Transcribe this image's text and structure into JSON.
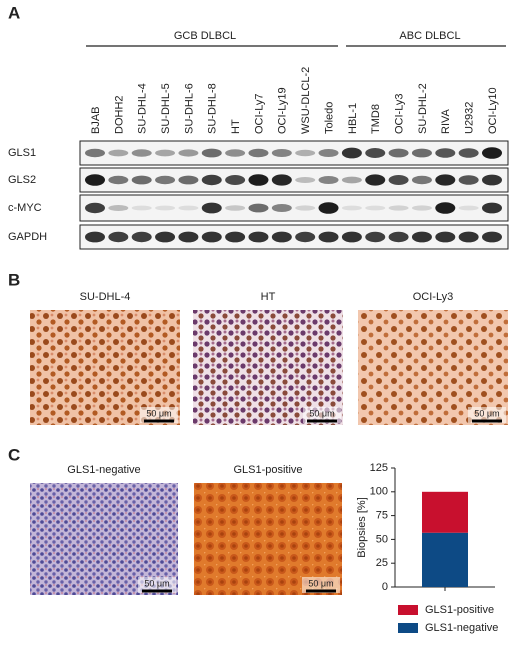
{
  "panel_a": {
    "label": "A",
    "groups": [
      "GCB DLBCL",
      "ABC DLBCL"
    ],
    "lanes": [
      "BJAB",
      "DOHH2",
      "SU-DHL-4",
      "SU-DHL-5",
      "SU-DHL-6",
      "SU-DHL-8",
      "HT",
      "OCI-Ly7",
      "OCI-Ly19",
      "WSU-DLCL-2",
      "Toledo",
      "HBL-1",
      "TMD8",
      "OCI-Ly3",
      "SU-DHL-2",
      "RIVA",
      "U2932",
      "OCI-Ly10"
    ],
    "rows": [
      "GLS1",
      "GLS2",
      "c-MYC",
      "GAPDH"
    ]
  },
  "panel_b": {
    "label": "B",
    "images": [
      {
        "title": "SU-DHL-4",
        "scale": "50 μm"
      },
      {
        "title": "HT",
        "scale": "50 μm"
      },
      {
        "title": "OCI-Ly3",
        "scale": "50 μm"
      }
    ]
  },
  "panel_c": {
    "label": "C",
    "images": [
      {
        "title": "GLS1-negative",
        "scale": "50 μm"
      },
      {
        "title": "GLS1-positive",
        "scale": "50 μm"
      }
    ]
  },
  "chart_data": {
    "type": "bar",
    "stacked": true,
    "categories": [
      null
    ],
    "ylabel": "Biopsies [%]",
    "ylim": [
      0,
      125
    ],
    "yticks": [
      0,
      25,
      50,
      75,
      100,
      125
    ],
    "legend": "bottom",
    "series": [
      {
        "name": "GLS1-negative",
        "color": "#0d4a85",
        "values": [
          57
        ]
      },
      {
        "name": "GLS1-positive",
        "color": "#c8102e",
        "values": [
          43
        ]
      }
    ]
  }
}
